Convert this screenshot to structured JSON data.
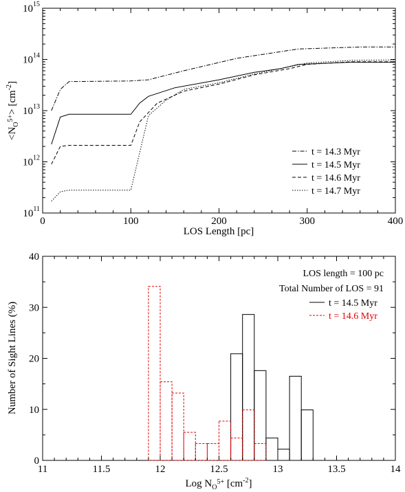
{
  "chart_data": [
    {
      "type": "line",
      "xlabel": "LOS Length [pc]",
      "ylabel": "<N_O5+> [cm^-2]",
      "ylabel_parts": {
        "open": "<N",
        "sub": "O",
        "sub_sup": "5+",
        "close": "> [cm",
        "sup": "-2",
        "end": "]"
      },
      "xlim": [
        0,
        400
      ],
      "ylim": [
        100000000000.0,
        1000000000000000.0
      ],
      "yscale": "log",
      "x_ticks": [
        "0",
        "100",
        "200",
        "300",
        "400"
      ],
      "y_ticks": [
        {
          "base": "10",
          "exp": "11"
        },
        {
          "base": "10",
          "exp": "12"
        },
        {
          "base": "10",
          "exp": "13"
        },
        {
          "base": "10",
          "exp": "14"
        },
        {
          "base": "10",
          "exp": "15"
        }
      ],
      "legend_position": "lower-right",
      "series": [
        {
          "name": "t = 14.3 Myr",
          "style": "dash-dot",
          "x": [
            10,
            20,
            30,
            100,
            120,
            160,
            220,
            290,
            360,
            400
          ],
          "y": [
            10000000000000.0,
            26000000000000.0,
            37000000000000.0,
            38000000000000.0,
            40000000000000.0,
            60000000000000.0,
            105000000000000.0,
            160000000000000.0,
            175000000000000.0,
            175000000000000.0
          ]
        },
        {
          "name": "t = 14.5 Myr",
          "style": "solid",
          "x": [
            10,
            20,
            30,
            100,
            110,
            120,
            150,
            200,
            240,
            270,
            290,
            350,
            400
          ],
          "y": [
            2200000000000.0,
            7500000000000.0,
            8500000000000.0,
            8500000000000.0,
            14000000000000.0,
            19000000000000.0,
            28000000000000.0,
            40000000000000.0,
            56000000000000.0,
            66000000000000.0,
            80000000000000.0,
            88000000000000.0,
            88000000000000.0
          ]
        },
        {
          "name": "t = 14.6 Myr",
          "style": "dashed",
          "x": [
            10,
            20,
            30,
            100,
            110,
            130,
            160,
            200,
            240,
            280,
            300,
            350,
            400
          ],
          "y": [
            900000000000.0,
            2000000000000.0,
            2100000000000.0,
            2100000000000.0,
            6000000000000.0,
            14000000000000.0,
            24000000000000.0,
            33000000000000.0,
            50000000000000.0,
            66000000000000.0,
            80000000000000.0,
            90000000000000.0,
            90000000000000.0
          ]
        },
        {
          "name": "t = 14.7 Myr",
          "style": "dotted",
          "x": [
            10,
            20,
            30,
            100,
            120,
            140,
            160,
            200,
            240,
            280,
            300,
            350,
            400
          ],
          "y": [
            170000000000.0,
            260000000000.0,
            280000000000.0,
            280000000000.0,
            8000000000000.0,
            16000000000000.0,
            26000000000000.0,
            35000000000000.0,
            52000000000000.0,
            72000000000000.0,
            85000000000000.0,
            96000000000000.0,
            98000000000000.0
          ]
        }
      ]
    },
    {
      "type": "bar",
      "xlabel": "Log N_O5+ [cm^-2]",
      "xlabel_parts": {
        "start": "Log N",
        "sub": "O",
        "sub_sup": "5+",
        "mid": " [cm",
        "sup": "-2",
        "end": "]"
      },
      "ylabel": "Number of Sight Lines (%)",
      "xlim": [
        11,
        14
      ],
      "ylim": [
        0,
        40
      ],
      "x_ticks": [
        "11",
        "11.5",
        "12",
        "12.5",
        "13",
        "13.5",
        "14"
      ],
      "y_ticks": [
        "0",
        "10",
        "20",
        "30",
        "40"
      ],
      "annotations": [
        "LOS length = 100 pc",
        "Total Number of LOS = 91"
      ],
      "legend_position": "top-right",
      "bin_width": 0.1,
      "series": [
        {
          "name": "t = 14.5 Myr",
          "color": "#000000",
          "bin_left": [
            12.6,
            12.7,
            12.8,
            12.9,
            13.0,
            13.1,
            13.2
          ],
          "values": [
            20.9,
            28.6,
            17.6,
            4.4,
            2.2,
            16.5,
            9.9
          ]
        },
        {
          "name": "t = 14.6 Myr",
          "color": "#e00000",
          "bin_left": [
            11.9,
            12.0,
            12.1,
            12.2,
            12.3,
            12.4,
            12.5,
            12.6,
            12.7,
            12.8
          ],
          "values": [
            34.1,
            15.4,
            13.2,
            5.5,
            3.3,
            3.3,
            7.7,
            4.4,
            9.9,
            3.3
          ]
        }
      ]
    }
  ]
}
